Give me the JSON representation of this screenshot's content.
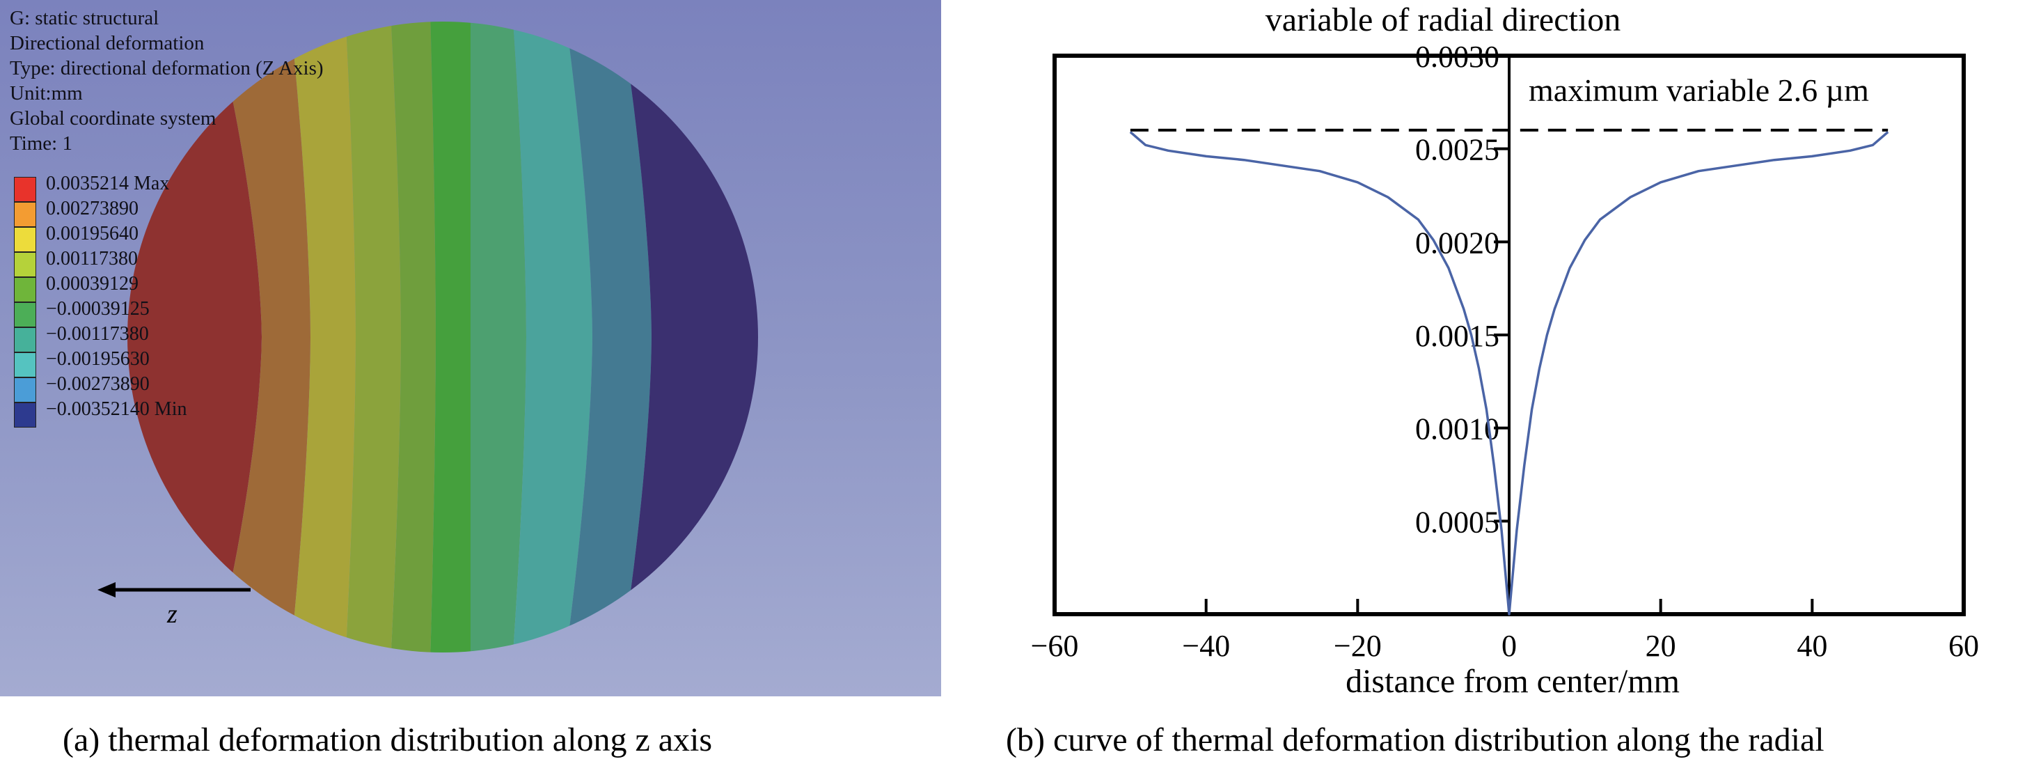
{
  "panel_a": {
    "info_lines": [
      "G: static structural",
      "Directional deformation",
      "Type: directional deformation (Z Axis)",
      "Unit:mm",
      "Global coordinate system",
      "Time: 1"
    ],
    "legend": [
      {
        "label": "0.0035214 Max",
        "color": "#e8332b"
      },
      {
        "label": "0.00273890",
        "color": "#f39c32"
      },
      {
        "label": "0.00195640",
        "color": "#eddc3b"
      },
      {
        "label": "0.00117380",
        "color": "#b5d23a"
      },
      {
        "label": "0.00039129",
        "color": "#6fb53a"
      },
      {
        "label": "−0.00039125",
        "color": "#4cae57"
      },
      {
        "label": "−0.00117380",
        "color": "#46b19a"
      },
      {
        "label": "−0.00195630",
        "color": "#55c3c0"
      },
      {
        "label": "−0.00273890",
        "color": "#4b9dd7"
      },
      {
        "label": "−0.00352140 Min",
        "color": "#2d3a8f"
      }
    ],
    "band_colors": [
      "#8e3230",
      "#9e6a38",
      "#a9a43a",
      "#8ba33c",
      "#6f9e3d",
      "#45a03d",
      "#4da070",
      "#4ba39c",
      "#447a92",
      "#3b3070"
    ],
    "axis_label": "z",
    "caption": "(a) thermal deformation distribution along z axis"
  },
  "panel_b": {
    "caption": "(b) curve of thermal deformation distribution along the radial"
  },
  "chart_data": {
    "type": "line",
    "title": "variable of radial direction",
    "xlabel": "distance from center/mm",
    "ylabel": "",
    "xlim": [
      -60,
      60
    ],
    "ylim": [
      0,
      0.003
    ],
    "xticks": [
      -60,
      -40,
      -20,
      0,
      20,
      40,
      60
    ],
    "yticks": [
      0.0005,
      0.001,
      0.0015,
      0.002,
      0.0025,
      0.003
    ],
    "xtick_labels": [
      "−60",
      "−40",
      "−20",
      "0",
      "20",
      "40",
      "60"
    ],
    "ytick_labels": [
      "0.0005",
      "0.0010",
      "0.0015",
      "0.0020",
      "0.0025",
      "0.0030"
    ],
    "series": [
      {
        "x": [
          -50,
          -48,
          -45,
          -40,
          -35,
          -30,
          -25,
          -20,
          -16,
          -12,
          -10,
          -8,
          -6,
          -5,
          -4,
          -3,
          -2,
          -1,
          0,
          1,
          2,
          3,
          4,
          5,
          6,
          8,
          10,
          12,
          16,
          20,
          25,
          30,
          35,
          40,
          45,
          48,
          50
        ],
        "y": [
          0.00259,
          0.00252,
          0.00249,
          0.00246,
          0.00244,
          0.00241,
          0.00238,
          0.00232,
          0.00224,
          0.00212,
          0.00201,
          0.00186,
          0.00164,
          0.0015,
          0.00132,
          0.0011,
          0.0008,
          0.00045,
          0.0,
          0.00045,
          0.0008,
          0.0011,
          0.00132,
          0.0015,
          0.00164,
          0.00186,
          0.00201,
          0.00212,
          0.00224,
          0.00232,
          0.00238,
          0.00241,
          0.00244,
          0.00246,
          0.00249,
          0.00252,
          0.00259
        ],
        "color": "#4a64a6"
      }
    ],
    "reference_line": {
      "y": 0.0026,
      "x_range": [
        -50,
        50
      ],
      "style": "dashed"
    },
    "annotation": "maximum variable 2.6 µm",
    "grid": false,
    "axis_spine": "x = 0"
  }
}
